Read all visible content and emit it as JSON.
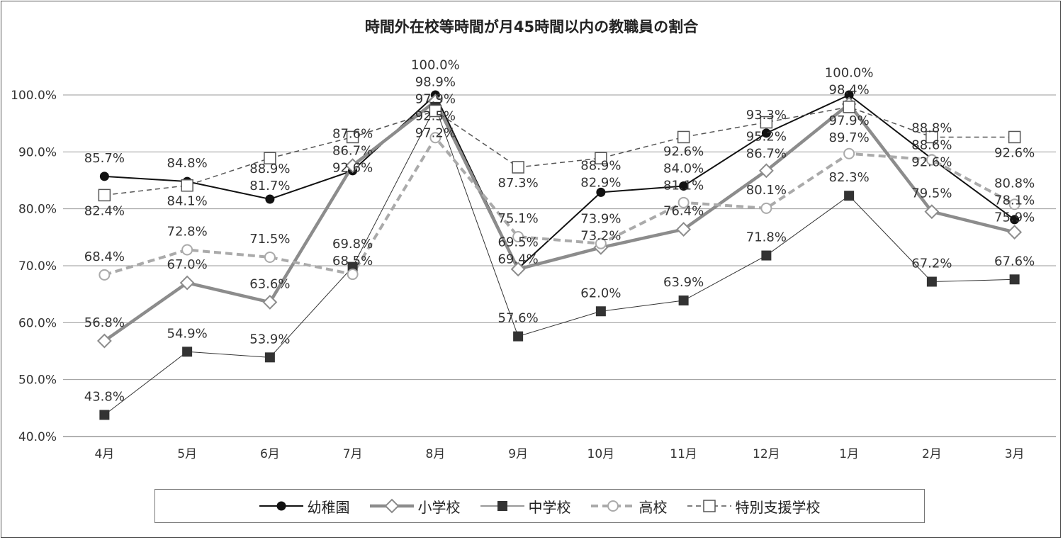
{
  "chart_data": {
    "type": "line",
    "title": "時間外在校等時間が月45時間以内の教職員の割合",
    "categories": [
      "4月",
      "5月",
      "6月",
      "7月",
      "8月",
      "9月",
      "10月",
      "11月",
      "12月",
      "1月",
      "2月",
      "3月"
    ],
    "ylim": [
      40,
      100
    ],
    "yticks": [
      "40.0%",
      "50.0%",
      "60.0%",
      "70.0%",
      "80.0%",
      "90.0%",
      "100.0%"
    ],
    "grid": true,
    "legend_position": "bottom",
    "series": [
      {
        "name": "幼稚園",
        "color": "#111111",
        "marker": "filled-circle",
        "line": "solid-thin",
        "values": [
          85.7,
          84.8,
          81.7,
          86.7,
          100.0,
          69.5,
          82.9,
          84.0,
          93.3,
          100.0,
          88.8,
          78.1
        ],
        "labels": [
          "85.7%",
          "84.8%",
          "81.7%",
          "86.7%",
          "100.0%",
          "69.5%",
          "82.9%",
          "84.0%",
          "93.3%",
          "100.0%",
          "88.8%",
          "78.1%"
        ]
      },
      {
        "name": "小学校",
        "color": "#8c8c8c",
        "marker": "open-diamond",
        "line": "solid-thick",
        "values": [
          56.8,
          67.0,
          63.6,
          87.6,
          98.9,
          69.4,
          73.2,
          76.4,
          86.7,
          98.4,
          79.5,
          75.9
        ],
        "labels": [
          "56.8%",
          "67.0%",
          "63.6%",
          "87.6%",
          "98.9%",
          "69.4%",
          "73.2%",
          "76.4%",
          "86.7%",
          "98.4%",
          "79.5%",
          "75.9%"
        ]
      },
      {
        "name": "中学校",
        "color": "#333333",
        "marker": "filled-square",
        "line": "solid-hairline",
        "values": [
          43.8,
          54.9,
          53.9,
          69.8,
          97.9,
          57.6,
          62.0,
          63.9,
          71.8,
          82.3,
          67.2,
          67.6
        ],
        "labels": [
          "43.8%",
          "54.9%",
          "53.9%",
          "69.8%",
          "97.9%",
          "57.6%",
          "62.0%",
          "63.9%",
          "71.8%",
          "82.3%",
          "67.2%",
          "67.6%"
        ]
      },
      {
        "name": "高校",
        "color": "#aaaaaa",
        "marker": "open-circle",
        "line": "dashed-thick",
        "values": [
          68.4,
          72.8,
          71.5,
          68.5,
          92.5,
          75.1,
          73.9,
          81.1,
          80.1,
          89.7,
          88.6,
          80.8
        ],
        "labels": [
          "68.4%",
          "72.8%",
          "71.5%",
          "68.5%",
          "92.5%",
          "75.1%",
          "73.9%",
          "81.1%",
          "80.1%",
          "89.7%",
          "88.6%",
          "80.8%"
        ]
      },
      {
        "name": "特別支援学校",
        "color": "#555555",
        "marker": "open-square",
        "line": "dashed-thin",
        "values": [
          82.4,
          84.1,
          88.9,
          92.6,
          97.2,
          87.3,
          88.9,
          92.6,
          95.2,
          97.9,
          92.6,
          92.6
        ],
        "labels": [
          "82.4%",
          "84.1%",
          "88.9%",
          "92.6%",
          "97.2%",
          "87.3%",
          "88.9%",
          "92.6%",
          "95.2%",
          "97.9%",
          "92.6%",
          "92.6%"
        ]
      }
    ]
  }
}
